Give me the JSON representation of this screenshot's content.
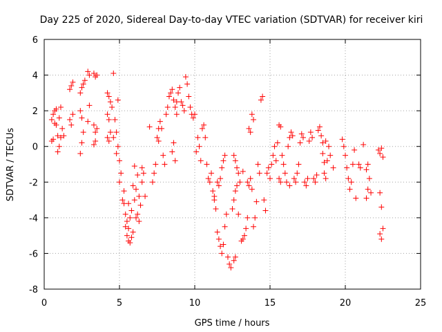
{
  "chart_data": {
    "type": "scatter",
    "title": "Day 225 of 2020, Sidereal Day-to-day VTEC variation (SDTVAR) for receiver kiri",
    "xlabel": "GPS time / hours",
    "ylabel": "SDTVAR / TECUs",
    "xlim": [
      0,
      25
    ],
    "ylim": [
      -8,
      6
    ],
    "xticks": [
      0,
      5,
      10,
      15,
      20,
      25
    ],
    "yticks": [
      -8,
      -6,
      -4,
      -2,
      0,
      2,
      4,
      6
    ],
    "grid": true,
    "marker": "+",
    "color": "#ff0000",
    "series": [
      {
        "name": "",
        "points": [
          [
            0.5,
            1.5
          ],
          [
            0.6,
            1.8
          ],
          [
            0.7,
            2.0
          ],
          [
            0.8,
            1.2
          ],
          [
            0.9,
            0.6
          ],
          [
            1.0,
            1.6
          ],
          [
            1.1,
            2.2
          ],
          [
            1.2,
            1.0
          ],
          [
            0.5,
            0.3
          ],
          [
            0.6,
            0.4
          ],
          [
            0.9,
            -0.3
          ],
          [
            1.0,
            0.0
          ],
          [
            1.1,
            0.5
          ],
          [
            1.7,
            1.5
          ],
          [
            1.8,
            1.2
          ],
          [
            1.9,
            1.8
          ],
          [
            1.7,
            3.2
          ],
          [
            1.8,
            3.4
          ],
          [
            1.9,
            3.6
          ],
          [
            2.4,
            3.0
          ],
          [
            2.5,
            3.3
          ],
          [
            2.6,
            3.5
          ],
          [
            2.7,
            3.7
          ],
          [
            2.4,
            2.0
          ],
          [
            2.5,
            1.6
          ],
          [
            2.6,
            0.8
          ],
          [
            2.4,
            -0.4
          ],
          [
            2.5,
            0.2
          ],
          [
            2.9,
            4.2
          ],
          [
            3.0,
            4.0
          ],
          [
            3.3,
            4.1
          ],
          [
            3.4,
            3.9
          ],
          [
            3.5,
            4.0
          ],
          [
            3.3,
            1.2
          ],
          [
            3.4,
            0.8
          ],
          [
            3.3,
            0.1
          ],
          [
            3.4,
            0.3
          ],
          [
            3.5,
            1.0
          ],
          [
            2.9,
            1.4
          ],
          [
            4.2,
            3.0
          ],
          [
            4.3,
            2.8
          ],
          [
            4.4,
            2.5
          ],
          [
            4.5,
            2.2
          ],
          [
            4.6,
            4.1
          ],
          [
            4.2,
            1.8
          ],
          [
            4.3,
            1.5
          ],
          [
            4.2,
            0.5
          ],
          [
            4.3,
            0.3
          ],
          [
            4.4,
            0.8
          ],
          [
            4.6,
            0.5
          ],
          [
            4.7,
            1.5
          ],
          [
            4.8,
            0.8
          ],
          [
            4.9,
            0.0
          ],
          [
            5.0,
            -0.8
          ],
          [
            5.1,
            -1.5
          ],
          [
            5.0,
            -2.0
          ],
          [
            5.3,
            -2.5
          ],
          [
            5.3,
            -3.2
          ],
          [
            5.4,
            -3.8
          ],
          [
            5.4,
            -4.5
          ],
          [
            5.5,
            -5.0
          ],
          [
            5.6,
            -5.3
          ],
          [
            5.7,
            -5.4
          ],
          [
            5.8,
            -5.1
          ],
          [
            5.5,
            -4.2
          ],
          [
            5.6,
            -4.6
          ],
          [
            5.7,
            -4.0
          ],
          [
            5.8,
            -3.6
          ],
          [
            6.0,
            -3.0
          ],
          [
            6.1,
            -2.4
          ],
          [
            6.2,
            -3.8
          ],
          [
            6.3,
            -4.2
          ],
          [
            6.4,
            -3.3
          ],
          [
            6.5,
            -2.0
          ],
          [
            6.6,
            -1.5
          ],
          [
            6.5,
            -1.2
          ],
          [
            6.2,
            -1.6
          ],
          [
            6.3,
            -2.8
          ],
          [
            5.6,
            -3.2
          ],
          [
            5.9,
            -4.8
          ],
          [
            6.1,
            -4.0
          ],
          [
            5.2,
            -3.0
          ],
          [
            7.2,
            -2.0
          ],
          [
            7.3,
            -1.5
          ],
          [
            7.4,
            -1.0
          ],
          [
            7.5,
            0.5
          ],
          [
            7.6,
            1.0
          ],
          [
            7.7,
            1.4
          ],
          [
            7.8,
            1.0
          ],
          [
            7.6,
            0.3
          ],
          [
            7.9,
            -0.5
          ],
          [
            8.0,
            -1.0
          ],
          [
            8.1,
            1.8
          ],
          [
            8.2,
            2.2
          ],
          [
            8.3,
            2.8
          ],
          [
            8.4,
            3.0
          ],
          [
            8.5,
            3.2
          ],
          [
            8.6,
            2.6
          ],
          [
            8.7,
            2.2
          ],
          [
            8.8,
            2.5
          ],
          [
            8.9,
            3.0
          ],
          [
            9.0,
            3.3
          ],
          [
            9.1,
            2.5
          ],
          [
            9.2,
            2.3
          ],
          [
            9.4,
            3.9
          ],
          [
            9.5,
            3.5
          ],
          [
            9.6,
            2.8
          ],
          [
            9.7,
            2.2
          ],
          [
            9.8,
            1.8
          ],
          [
            9.9,
            1.6
          ],
          [
            10.0,
            1.8
          ],
          [
            8.5,
            -0.3
          ],
          [
            8.6,
            0.2
          ],
          [
            8.7,
            -0.8
          ],
          [
            10.2,
            0.5
          ],
          [
            10.3,
            0.0
          ],
          [
            10.4,
            -0.8
          ],
          [
            10.5,
            1.0
          ],
          [
            10.6,
            1.2
          ],
          [
            10.7,
            0.5
          ],
          [
            10.8,
            -1.0
          ],
          [
            10.9,
            -1.8
          ],
          [
            11.0,
            -2.0
          ],
          [
            11.1,
            -1.5
          ],
          [
            11.2,
            -2.5
          ],
          [
            11.3,
            -3.0
          ],
          [
            11.4,
            -3.5
          ],
          [
            11.5,
            -2.0
          ],
          [
            11.6,
            -2.2
          ],
          [
            11.7,
            -1.8
          ],
          [
            11.8,
            -1.2
          ],
          [
            11.9,
            -0.8
          ],
          [
            12.0,
            -0.5
          ],
          [
            11.5,
            -4.8
          ],
          [
            11.6,
            -5.2
          ],
          [
            11.7,
            -5.6
          ],
          [
            11.8,
            -6.0
          ],
          [
            11.9,
            -5.5
          ],
          [
            12.0,
            -4.5
          ],
          [
            12.1,
            -3.8
          ],
          [
            12.2,
            -6.2
          ],
          [
            12.3,
            -6.6
          ],
          [
            12.4,
            -6.8
          ],
          [
            12.6,
            -6.4
          ],
          [
            12.7,
            -6.2
          ],
          [
            12.5,
            -3.5
          ],
          [
            12.6,
            -3.0
          ],
          [
            12.7,
            -2.5
          ],
          [
            12.8,
            -2.2
          ],
          [
            12.6,
            -0.5
          ],
          [
            12.7,
            -0.8
          ],
          [
            12.8,
            -1.2
          ],
          [
            12.9,
            -1.5
          ],
          [
            13.0,
            -2.0
          ],
          [
            13.1,
            -5.3
          ],
          [
            13.2,
            -5.2
          ],
          [
            13.3,
            -5.0
          ],
          [
            13.4,
            -4.6
          ],
          [
            13.5,
            -4.0
          ],
          [
            13.5,
            -2.0
          ],
          [
            13.6,
            -2.2
          ],
          [
            13.7,
            -1.8
          ],
          [
            13.8,
            -2.4
          ],
          [
            13.9,
            -4.5
          ],
          [
            14.0,
            -4.0
          ],
          [
            13.8,
            1.8
          ],
          [
            13.9,
            1.5
          ],
          [
            13.7,
            0.8
          ],
          [
            13.6,
            1.0
          ],
          [
            14.2,
            -1.0
          ],
          [
            14.3,
            -1.5
          ],
          [
            14.4,
            2.6
          ],
          [
            14.5,
            2.8
          ],
          [
            14.6,
            -3.0
          ],
          [
            14.7,
            -3.6
          ],
          [
            14.8,
            -1.5
          ],
          [
            14.9,
            -1.2
          ],
          [
            15.0,
            -1.8
          ],
          [
            15.1,
            -1.0
          ],
          [
            15.2,
            -0.5
          ],
          [
            15.3,
            0.0
          ],
          [
            15.4,
            -0.8
          ],
          [
            15.5,
            0.2
          ],
          [
            15.6,
            -1.8
          ],
          [
            15.7,
            -2.0
          ],
          [
            15.6,
            1.2
          ],
          [
            15.7,
            1.1
          ],
          [
            15.8,
            -0.5
          ],
          [
            15.9,
            -1.0
          ],
          [
            16.0,
            -1.5
          ],
          [
            16.1,
            -2.0
          ],
          [
            16.2,
            0.0
          ],
          [
            16.3,
            0.5
          ],
          [
            16.4,
            0.8
          ],
          [
            16.5,
            0.6
          ],
          [
            16.6,
            -1.8
          ],
          [
            16.7,
            -2.0
          ],
          [
            16.8,
            -1.5
          ],
          [
            16.9,
            -1.0
          ],
          [
            17.0,
            0.2
          ],
          [
            17.1,
            0.7
          ],
          [
            17.2,
            0.5
          ],
          [
            17.3,
            -2.0
          ],
          [
            17.4,
            -2.2
          ],
          [
            17.5,
            -1.8
          ],
          [
            17.6,
            0.3
          ],
          [
            17.7,
            0.8
          ],
          [
            17.8,
            0.5
          ],
          [
            17.9,
            -1.8
          ],
          [
            18.0,
            -2.0
          ],
          [
            18.1,
            -1.6
          ],
          [
            18.2,
            0.9
          ],
          [
            18.3,
            1.1
          ],
          [
            18.4,
            0.6
          ],
          [
            18.5,
            0.2
          ],
          [
            18.6,
            -1.5
          ],
          [
            18.7,
            -1.8
          ],
          [
            18.8,
            -0.8
          ],
          [
            18.9,
            0.0
          ],
          [
            19.0,
            -0.5
          ],
          [
            18.5,
            -0.4
          ],
          [
            18.6,
            -0.9
          ],
          [
            18.7,
            0.3
          ],
          [
            19.8,
            0.4
          ],
          [
            19.9,
            0.0
          ],
          [
            20.0,
            -0.5
          ],
          [
            20.1,
            -1.2
          ],
          [
            20.2,
            -1.8
          ],
          [
            20.3,
            -2.4
          ],
          [
            20.4,
            -2.0
          ],
          [
            20.5,
            -1.0
          ],
          [
            20.6,
            -0.2
          ],
          [
            20.9,
            -1.0
          ],
          [
            21.0,
            -1.2
          ],
          [
            21.2,
            0.1
          ],
          [
            21.4,
            -1.3
          ],
          [
            21.5,
            -2.4
          ],
          [
            21.6,
            -1.8
          ],
          [
            21.7,
            -2.6
          ],
          [
            21.4,
            -2.9
          ],
          [
            21.5,
            -1.0
          ],
          [
            22.2,
            -0.2
          ],
          [
            22.3,
            -0.4
          ],
          [
            22.4,
            -0.1
          ],
          [
            22.5,
            -0.6
          ],
          [
            22.3,
            -2.6
          ],
          [
            22.4,
            -3.4
          ],
          [
            22.5,
            -4.6
          ],
          [
            22.4,
            -5.2
          ],
          [
            22.3,
            -4.9
          ],
          [
            6.0,
            -1.1
          ],
          [
            6.7,
            -2.8
          ],
          [
            4.8,
            -0.4
          ],
          [
            9.3,
            2.0
          ],
          [
            0.8,
            2.1
          ],
          [
            1.3,
            0.6
          ],
          [
            3.0,
            2.3
          ],
          [
            10.1,
            -0.3
          ],
          [
            11.3,
            -2.8
          ],
          [
            12.9,
            -3.8
          ],
          [
            14.1,
            -3.1
          ],
          [
            13.2,
            -1.4
          ],
          [
            16.3,
            -2.2
          ],
          [
            19.2,
            -1.2
          ],
          [
            20.7,
            -2.9
          ],
          [
            7.0,
            1.1
          ],
          [
            5.9,
            -2.2
          ],
          [
            4.9,
            2.6
          ],
          [
            0.7,
            1.3
          ],
          [
            8.8,
            1.8
          ]
        ]
      }
    ]
  }
}
